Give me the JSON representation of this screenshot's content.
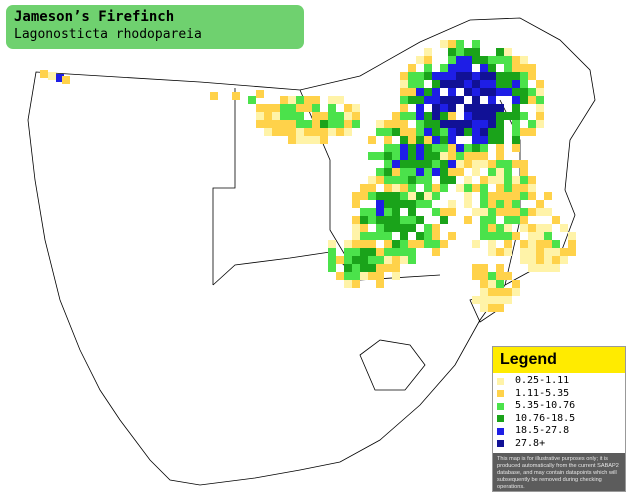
{
  "title": {
    "common_name": "Jameson’s Firefinch",
    "scientific_name": "Lagonosticta rhodopareia"
  },
  "legend": {
    "heading": "Legend",
    "classes": [
      {
        "label": "0.25-1.11",
        "color": "#fff3a8"
      },
      {
        "label": "1.11-5.35",
        "color": "#ffd24a"
      },
      {
        "label": "5.35-10.76",
        "color": "#4be24b"
      },
      {
        "label": "10.76-18.5",
        "color": "#1aa31a"
      },
      {
        "label": "18.5-27.8",
        "color": "#1e1ee6"
      },
      {
        "label": "27.8+",
        "color": "#111196"
      }
    ],
    "disclaimer": "This map is for illustrative purposes only; it is produced automatically from the current SABAP2 database, and may contain datapoints which will subsequently be removed during checking operations."
  }
}
